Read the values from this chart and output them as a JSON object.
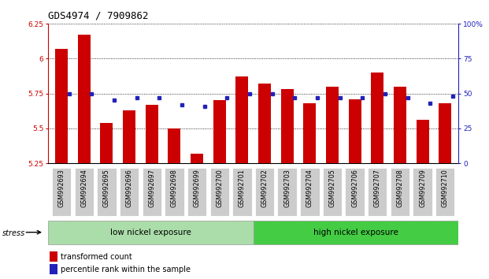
{
  "title": "GDS4974 / 7909862",
  "samples": [
    "GSM992693",
    "GSM992694",
    "GSM992695",
    "GSM992696",
    "GSM992697",
    "GSM992698",
    "GSM992699",
    "GSM992700",
    "GSM992701",
    "GSM992702",
    "GSM992703",
    "GSM992704",
    "GSM992705",
    "GSM992706",
    "GSM992707",
    "GSM992708",
    "GSM992709",
    "GSM992710"
  ],
  "red_values": [
    6.07,
    6.17,
    5.54,
    5.63,
    5.67,
    5.5,
    5.32,
    5.7,
    5.87,
    5.82,
    5.78,
    5.68,
    5.8,
    5.71,
    5.9,
    5.8,
    5.56,
    5.68
  ],
  "blue_pct": [
    50,
    50,
    45,
    47,
    47,
    42,
    41,
    47,
    50,
    50,
    47,
    47,
    47,
    47,
    50,
    47,
    43,
    48
  ],
  "ymin": 5.25,
  "ymax": 6.25,
  "yticks_left": [
    5.25,
    5.5,
    5.75,
    6.0,
    6.25
  ],
  "yticks_right": [
    0,
    25,
    50,
    75,
    100
  ],
  "group1_label": "low nickel exposure",
  "group2_label": "high nickel exposure",
  "group1_count": 9,
  "bar_color": "#cc0000",
  "dot_color": "#2222bb",
  "group1_bg": "#aaddaa",
  "group2_bg": "#44cc44",
  "xtick_bg": "#cccccc",
  "stress_label": "stress",
  "legend1": "transformed count",
  "legend2": "percentile rank within the sample",
  "bar_width": 0.55
}
